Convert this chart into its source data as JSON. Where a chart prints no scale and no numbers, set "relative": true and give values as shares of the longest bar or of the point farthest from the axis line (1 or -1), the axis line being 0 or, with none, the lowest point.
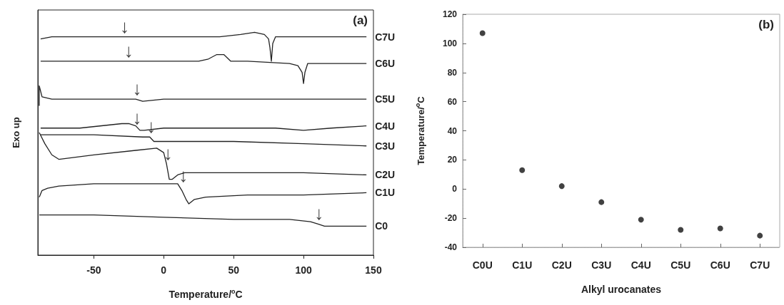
{
  "chart_data": [
    {
      "type": "line",
      "relative": true,
      "xlabel": "Temperature/$^{o}$C",
      "ylabel": "Exo up",
      "xlim": [
        -90,
        150
      ],
      "xticks": [
        -50,
        0,
        50,
        100,
        150
      ],
      "tick_labels": "x",
      "grid": false,
      "marker": "none",
      "line_style": "solid",
      "annotations": [
        "(a)",
        {
          "text": "↓",
          "x": -28,
          "y": 0.98
        },
        {
          "text": "↓",
          "x": -25,
          "y": 0.87
        },
        {
          "text": "↓",
          "x": -19,
          "y": 0.7
        },
        {
          "text": "↓",
          "x": -19,
          "y": 0.57
        },
        {
          "text": "↓",
          "x": -9,
          "y": 0.53
        },
        {
          "text": "↓",
          "x": 3,
          "y": 0.41
        },
        {
          "text": "↓",
          "x": 14,
          "y": 0.31
        },
        {
          "text": "↓",
          "x": 111,
          "y": 0.14
        }
      ],
      "series": [
        {
          "name": "C7U",
          "color": "#222222",
          "x": [
            -88,
            -80,
            -20,
            0,
            40,
            55,
            65,
            72,
            75,
            76,
            77,
            78,
            80,
            100,
            145
          ],
          "values": [
            0.97,
            0.98,
            0.98,
            0.98,
            0.98,
            0.99,
            1.0,
            0.99,
            0.97,
            0.93,
            0.87,
            0.95,
            0.98,
            0.98,
            0.98
          ]
        },
        {
          "name": "C6U",
          "color": "#222222",
          "x": [
            -88,
            -50,
            0,
            25,
            32,
            38,
            40,
            43,
            48,
            60,
            90,
            96,
            99,
            100,
            101,
            103,
            110,
            145
          ],
          "values": [
            0.87,
            0.87,
            0.87,
            0.87,
            0.88,
            0.9,
            0.9,
            0.9,
            0.87,
            0.87,
            0.86,
            0.85,
            0.82,
            0.77,
            0.82,
            0.86,
            0.86,
            0.86
          ]
        },
        {
          "name": "C5U",
          "color": "#222222",
          "x": [
            -89,
            -89,
            -87,
            -80,
            -25,
            -20,
            -15,
            0,
            50,
            100,
            145
          ],
          "values": [
            0.67,
            0.76,
            0.71,
            0.7,
            0.7,
            0.7,
            0.69,
            0.7,
            0.7,
            0.7,
            0.7
          ]
        },
        {
          "name": "C4U",
          "color": "#222222",
          "x": [
            -88,
            -60,
            -30,
            -25,
            -20,
            -17,
            -14,
            0,
            50,
            80,
            100,
            120,
            145
          ],
          "values": [
            0.57,
            0.57,
            0.59,
            0.59,
            0.58,
            0.56,
            0.56,
            0.57,
            0.57,
            0.57,
            0.56,
            0.57,
            0.58
          ]
        },
        {
          "name": "C3U",
          "color": "#222222",
          "x": [
            -88,
            -50,
            -15,
            -10,
            -7,
            -4,
            0,
            50,
            100,
            145
          ],
          "values": [
            0.54,
            0.54,
            0.53,
            0.53,
            0.51,
            0.51,
            0.51,
            0.51,
            0.5,
            0.49
          ]
        },
        {
          "name": "C2U",
          "color": "#222222",
          "x": [
            -89,
            -85,
            -80,
            -75,
            -50,
            -20,
            -5,
            0,
            2,
            4,
            6,
            10,
            15,
            30,
            100,
            145
          ],
          "values": [
            0.55,
            0.5,
            0.45,
            0.43,
            0.45,
            0.47,
            0.48,
            0.46,
            0.41,
            0.34,
            0.34,
            0.36,
            0.37,
            0.37,
            0.37,
            0.36
          ]
        },
        {
          "name": "C1U",
          "color": "#222222",
          "x": [
            -89,
            -87,
            -83,
            -75,
            -50,
            -10,
            10,
            13,
            16,
            18,
            22,
            30,
            60,
            100,
            145
          ],
          "values": [
            0.26,
            0.29,
            0.3,
            0.31,
            0.32,
            0.32,
            0.32,
            0.29,
            0.25,
            0.23,
            0.25,
            0.26,
            0.27,
            0.27,
            0.28
          ]
        },
        {
          "name": "C0",
          "color": "#222222",
          "x": [
            -89,
            -50,
            0,
            50,
            90,
            105,
            110,
            115,
            145
          ],
          "values": [
            0.18,
            0.18,
            0.17,
            0.16,
            0.16,
            0.15,
            0.14,
            0.13,
            0.13
          ]
        }
      ]
    },
    {
      "type": "scatter",
      "xlabel": "Alkyl urocanates",
      "ylabel": "Temperature/$^{o}$C",
      "categories": [
        "C0U",
        "C1U",
        "C2U",
        "C3U",
        "C4U",
        "C5U",
        "C6U",
        "C7U"
      ],
      "ylim": [
        -40,
        120
      ],
      "yticks": [
        -40,
        -20,
        0,
        20,
        40,
        60,
        80,
        100,
        120
      ],
      "grid": false,
      "marker": "circle",
      "color": "#111111",
      "values": [
        107,
        13,
        2,
        -9,
        -21,
        -28,
        -27,
        -32
      ],
      "annotations": [
        "(b)"
      ]
    }
  ]
}
